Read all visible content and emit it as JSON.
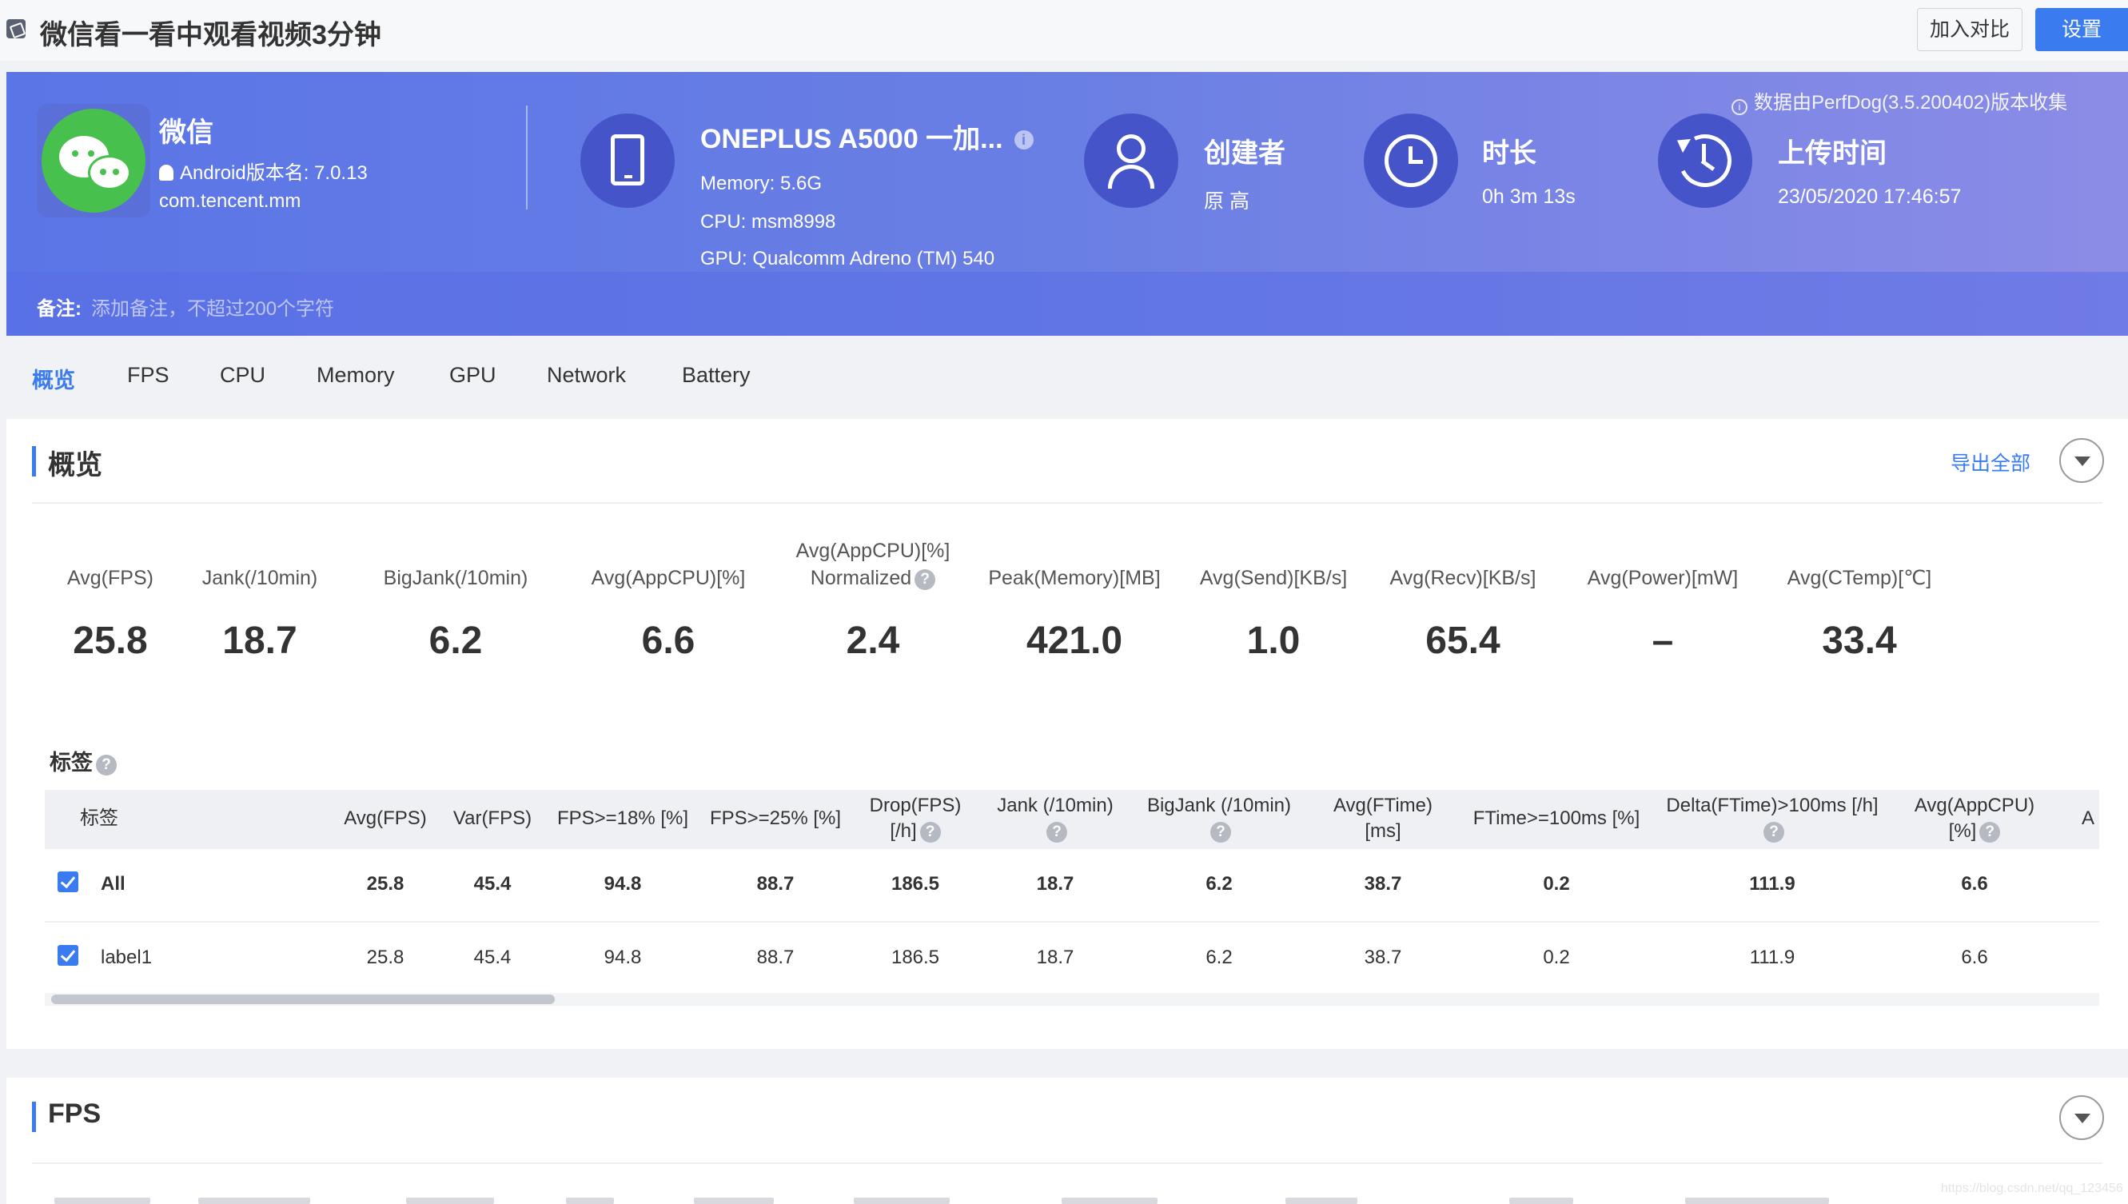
{
  "window": {
    "title": "微信看一看中观看视频3分钟"
  },
  "toolbar": {
    "compare_label": "加入对比",
    "settings_label": "设置"
  },
  "app": {
    "name": "微信",
    "version": "Android版本名: 7.0.13",
    "package": "com.tencent.mm"
  },
  "device": {
    "name": "ONEPLUS A5000 一加...",
    "info_glyph": "i",
    "memory": "Memory: 5.6G",
    "cpu": "CPU: msm8998",
    "gpu": "GPU: Qualcomm Adreno (TM) 540"
  },
  "creator": {
    "label": "创建者",
    "value": "原 高"
  },
  "duration": {
    "label": "时长",
    "value": "0h 3m 13s"
  },
  "upload": {
    "label": "上传时间",
    "value": "23/05/2020 17:46:57"
  },
  "perfdog_note": "数据由PerfDog(3.5.200402)版本收集",
  "note": {
    "label": "备注:",
    "placeholder": "添加备注，不超过200个字符"
  },
  "tabs": [
    "概览",
    "FPS",
    "CPU",
    "Memory",
    "GPU",
    "Network",
    "Battery"
  ],
  "overview": {
    "title": "概览",
    "export_label": "导出全部",
    "metrics": [
      {
        "label": "Avg(FPS)",
        "label2": "",
        "help": false,
        "value": "25.8"
      },
      {
        "label": "Jank(/10min)",
        "label2": "",
        "help": true,
        "value": "18.7"
      },
      {
        "label": "BigJank(/10min)",
        "label2": "",
        "help": true,
        "value": "6.2"
      },
      {
        "label": "Avg(AppCPU)[%]",
        "label2": "",
        "help": true,
        "value": "6.6"
      },
      {
        "label": "Avg(AppCPU)[%]",
        "label2": "Normalized",
        "help": true,
        "value": "2.4"
      },
      {
        "label": "Peak(Memory)[MB]",
        "label2": "",
        "help": false,
        "value": "421.0"
      },
      {
        "label": "Avg(Send)[KB/s]",
        "label2": "",
        "help": false,
        "value": "1.0"
      },
      {
        "label": "Avg(Recv)[KB/s]",
        "label2": "",
        "help": false,
        "value": "65.4"
      },
      {
        "label": "Avg(Power)[mW]",
        "label2": "",
        "help": true,
        "value": "–"
      },
      {
        "label": "Avg(CTemp)[℃]",
        "label2": "",
        "help": false,
        "value": "33.4"
      }
    ],
    "tags_title": "标签",
    "help_glyph": "?",
    "table": {
      "headers": [
        {
          "l1": "标签",
          "l2": "",
          "help": false
        },
        {
          "l1": "Avg(FPS)",
          "l2": "",
          "help": false
        },
        {
          "l1": "Var(FPS)",
          "l2": "",
          "help": false
        },
        {
          "l1": "FPS>=18% [%]",
          "l2": "",
          "help": false
        },
        {
          "l1": "FPS>=25% [%]",
          "l2": "",
          "help": false
        },
        {
          "l1": "Drop(FPS)",
          "l2": "[/h]",
          "help": true
        },
        {
          "l1": "Jank (/10min)",
          "l2": "",
          "help": true
        },
        {
          "l1": "BigJank (/10min)",
          "l2": "",
          "help": true
        },
        {
          "l1": "Avg(FTime)",
          "l2": "[ms]",
          "help": false
        },
        {
          "l1": "FTime>=100ms [%]",
          "l2": "",
          "help": false
        },
        {
          "l1": "Delta(FTime)>100ms [/h]",
          "l2": "",
          "help": true
        },
        {
          "l1": "Avg(AppCPU)",
          "l2": "[%]",
          "help": true
        },
        {
          "l1": "A",
          "l2": "",
          "help": false
        }
      ],
      "rows": [
        {
          "label": "All",
          "bold": true,
          "cells": [
            "25.8",
            "45.4",
            "94.8",
            "88.7",
            "186.5",
            "18.7",
            "6.2",
            "38.7",
            "0.2",
            "111.9",
            "6.6"
          ]
        },
        {
          "label": "label1",
          "bold": false,
          "cells": [
            "25.8",
            "45.4",
            "94.8",
            "88.7",
            "186.5",
            "18.7",
            "6.2",
            "38.7",
            "0.2",
            "111.9",
            "6.6"
          ]
        }
      ]
    }
  },
  "fps_section": {
    "title": "FPS"
  },
  "watermark": "https://blog.csdn.net/qq_123456"
}
